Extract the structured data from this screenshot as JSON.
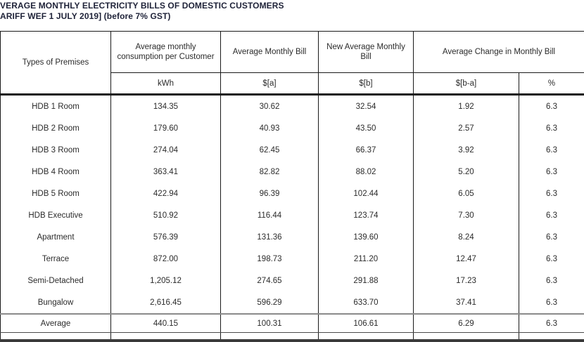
{
  "title": {
    "line1": "VERAGE MONTHLY ELECTRICITY BILLS OF DOMESTIC CUSTOMERS",
    "line2": "ARIFF WEF 1 JULY 2019] (before 7% GST)"
  },
  "colors": {
    "title_text": "#1e2238",
    "table_text": "#2b2b2b",
    "grid_line": "#1a1a1a",
    "average_separator_gray": "#8a8a8a",
    "bottom_rule": "#3a3a3a"
  },
  "table": {
    "headers": {
      "premises": "Types of Premises",
      "consumption": "Average monthly consumption per Customer",
      "avg_bill": "Average Monthly Bill",
      "new_avg_bill": "New Average Monthly Bill",
      "avg_change": "Average Change in Monthly Bill"
    },
    "units": {
      "consumption": "kWh",
      "avg_bill": "$[a]",
      "new_avg_bill": "$[b]",
      "change_amount": "$[b-a]",
      "change_pct": "%"
    },
    "rows": [
      {
        "premises": "HDB 1 Room",
        "kwh": "134.35",
        "bill_a": "30.62",
        "bill_b": "32.54",
        "change": "1.92",
        "pct": "6.3"
      },
      {
        "premises": "HDB 2 Room",
        "kwh": "179.60",
        "bill_a": "40.93",
        "bill_b": "43.50",
        "change": "2.57",
        "pct": "6.3"
      },
      {
        "premises": "HDB 3 Room",
        "kwh": "274.04",
        "bill_a": "62.45",
        "bill_b": "66.37",
        "change": "3.92",
        "pct": "6.3"
      },
      {
        "premises": "HDB 4 Room",
        "kwh": "363.41",
        "bill_a": "82.82",
        "bill_b": "88.02",
        "change": "5.20",
        "pct": "6.3"
      },
      {
        "premises": "HDB 5 Room",
        "kwh": "422.94",
        "bill_a": "96.39",
        "bill_b": "102.44",
        "change": "6.05",
        "pct": "6.3"
      },
      {
        "premises": "HDB Executive",
        "kwh": "510.92",
        "bill_a": "116.44",
        "bill_b": "123.74",
        "change": "7.30",
        "pct": "6.3"
      },
      {
        "premises": "Apartment",
        "kwh": "576.39",
        "bill_a": "131.36",
        "bill_b": "139.60",
        "change": "8.24",
        "pct": "6.3"
      },
      {
        "premises": "Terrace",
        "kwh": "872.00",
        "bill_a": "198.73",
        "bill_b": "211.20",
        "change": "12.47",
        "pct": "6.3"
      },
      {
        "premises": "Semi-Detached",
        "kwh": "1,205.12",
        "bill_a": "274.65",
        "bill_b": "291.88",
        "change": "17.23",
        "pct": "6.3"
      },
      {
        "premises": "Bungalow",
        "kwh": "2,616.45",
        "bill_a": "596.29",
        "bill_b": "633.70",
        "change": "37.41",
        "pct": "6.3"
      }
    ],
    "average_row": {
      "premises": "Average",
      "kwh": "440.15",
      "bill_a": "100.31",
      "bill_b": "106.61",
      "change": "6.29",
      "pct": "6.3"
    }
  }
}
